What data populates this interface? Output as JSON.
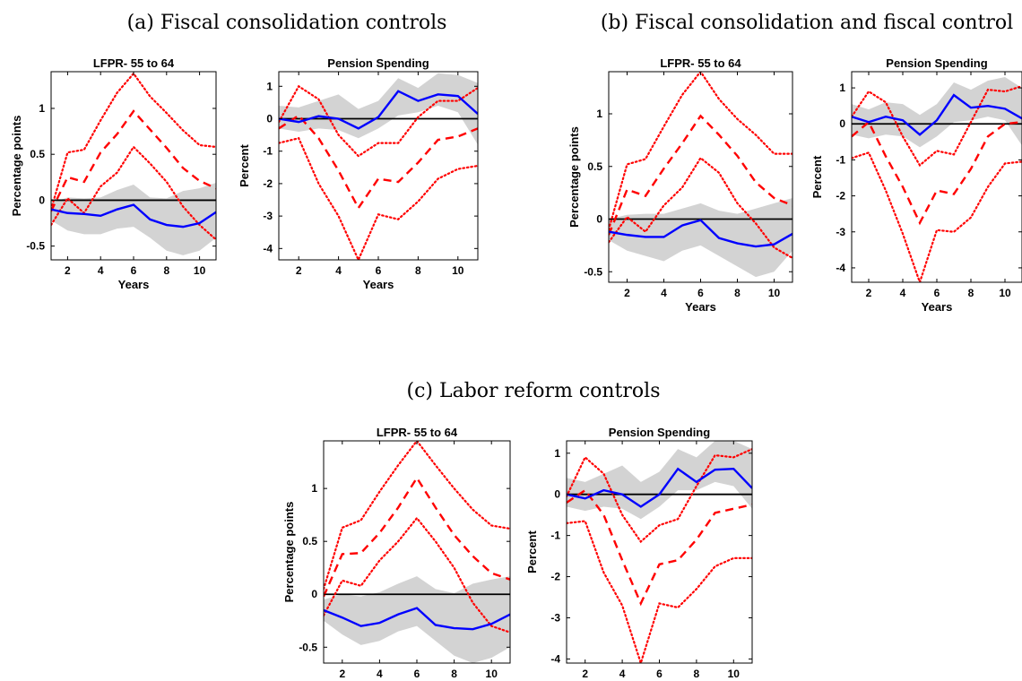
{
  "panels": [
    {
      "label": "(a) Fiscal consolidation controls"
    },
    {
      "label": "(b) Fiscal consolidation and fiscal control"
    },
    {
      "label": "(c) Labor reform controls"
    }
  ],
  "colors": {
    "band": "#d3d3d3",
    "line": "#0000ff",
    "red": "#ff0000",
    "zero": "#000000"
  },
  "chart_data": [
    {
      "panel": "a",
      "type": "line",
      "title": "LFPR- 55 to 64",
      "xlabel": "Years",
      "ylabel": "Percentage points",
      "xlim": [
        1,
        11
      ],
      "ylim": [
        -0.65,
        1.4
      ],
      "xticks": [
        2,
        4,
        6,
        8,
        10
      ],
      "yticks": [
        -0.5,
        0,
        0.5,
        1
      ],
      "x": [
        1,
        2,
        3,
        4,
        5,
        6,
        7,
        8,
        9,
        10,
        11
      ],
      "band_lower": [
        -0.22,
        -0.33,
        -0.37,
        -0.37,
        -0.31,
        -0.29,
        -0.41,
        -0.55,
        -0.6,
        -0.55,
        -0.41
      ],
      "band_upper": [
        -0.03,
        0.03,
        0.02,
        0.03,
        0.11,
        0.17,
        0.03,
        0.02,
        0.1,
        0.13,
        0.19
      ],
      "line": [
        -0.1,
        -0.14,
        -0.15,
        -0.17,
        -0.1,
        -0.05,
        -0.21,
        -0.27,
        -0.29,
        -0.25,
        -0.13
      ],
      "red_dashed": [
        -0.12,
        0.25,
        0.2,
        0.52,
        0.72,
        0.97,
        0.77,
        0.57,
        0.35,
        0.21,
        0.13
      ],
      "red_upper": [
        -0.1,
        0.52,
        0.55,
        0.87,
        1.17,
        1.38,
        1.13,
        0.95,
        0.76,
        0.6,
        0.58
      ],
      "red_lower": [
        -0.27,
        0.02,
        -0.14,
        0.15,
        0.3,
        0.58,
        0.4,
        0.2,
        -0.07,
        -0.27,
        -0.43
      ]
    },
    {
      "panel": "a",
      "type": "line",
      "title": "Pension Spending",
      "xlabel": "Years",
      "ylabel": "Percent",
      "xlim": [
        1,
        11
      ],
      "ylim": [
        -4.35,
        1.45
      ],
      "xticks": [
        2,
        4,
        6,
        8,
        10
      ],
      "yticks": [
        -4,
        -3,
        -2,
        -1,
        0,
        1
      ],
      "x": [
        1,
        2,
        3,
        4,
        5,
        6,
        7,
        8,
        9,
        10,
        11
      ],
      "band_lower": [
        -0.3,
        -0.4,
        -0.3,
        -0.35,
        -0.6,
        -0.3,
        0.1,
        0.2,
        0.4,
        0.2,
        -0.8
      ],
      "band_upper": [
        0.4,
        0.35,
        0.55,
        0.75,
        0.3,
        0.55,
        1.25,
        0.95,
        1.4,
        1.35,
        1.1
      ],
      "line": [
        0.0,
        -0.1,
        0.08,
        0.0,
        -0.3,
        0.05,
        0.85,
        0.55,
        0.75,
        0.7,
        0.15
      ],
      "red_dashed": [
        -0.3,
        0.1,
        -0.6,
        -1.6,
        -2.75,
        -1.85,
        -1.95,
        -1.35,
        -0.65,
        -0.55,
        -0.3
      ],
      "red_upper": [
        -0.1,
        1.0,
        0.6,
        -0.5,
        -1.15,
        -0.75,
        -0.75,
        0.05,
        0.55,
        0.55,
        0.95
      ],
      "red_lower": [
        -0.75,
        -0.6,
        -2.0,
        -3.0,
        -4.35,
        -2.95,
        -3.1,
        -2.55,
        -1.85,
        -1.55,
        -1.45
      ]
    },
    {
      "panel": "b",
      "type": "line",
      "title": "LFPR- 55 to 64",
      "xlabel": "Years",
      "ylabel": "Percentage points",
      "xlim": [
        1,
        11
      ],
      "ylim": [
        -0.6,
        1.4
      ],
      "xticks": [
        2,
        4,
        6,
        8,
        10
      ],
      "yticks": [
        -0.5,
        0,
        0.5,
        1
      ],
      "x": [
        1,
        2,
        3,
        4,
        5,
        6,
        7,
        8,
        9,
        10,
        11
      ],
      "band_lower": [
        -0.2,
        -0.3,
        -0.35,
        -0.4,
        -0.3,
        -0.25,
        -0.35,
        -0.45,
        -0.55,
        -0.5,
        -0.3
      ],
      "band_upper": [
        0.0,
        0.04,
        0.05,
        0.05,
        0.1,
        0.15,
        0.08,
        0.05,
        0.1,
        0.15,
        0.2
      ],
      "line": [
        -0.12,
        -0.15,
        -0.17,
        -0.17,
        -0.06,
        -0.01,
        -0.18,
        -0.23,
        -0.26,
        -0.24,
        -0.14
      ],
      "red_dashed": [
        -0.15,
        0.28,
        0.22,
        0.48,
        0.72,
        0.98,
        0.8,
        0.6,
        0.35,
        0.2,
        0.13
      ],
      "red_upper": [
        -0.1,
        0.52,
        0.57,
        0.88,
        1.18,
        1.4,
        1.14,
        0.95,
        0.8,
        0.62,
        0.62
      ],
      "red_lower": [
        -0.22,
        0.02,
        -0.12,
        0.13,
        0.3,
        0.58,
        0.44,
        0.15,
        -0.04,
        -0.27,
        -0.37
      ]
    },
    {
      "panel": "b",
      "type": "line",
      "title": "Pension Spending",
      "xlabel": "Years",
      "ylabel": "Percent",
      "xlim": [
        1,
        11
      ],
      "ylim": [
        -4.4,
        1.45
      ],
      "xticks": [
        2,
        4,
        6,
        8,
        10
      ],
      "yticks": [
        -4,
        -3,
        -2,
        -1,
        0,
        1
      ],
      "x": [
        1,
        2,
        3,
        4,
        5,
        6,
        7,
        8,
        9,
        10,
        11
      ],
      "band_lower": [
        -0.3,
        -0.4,
        -0.3,
        -0.35,
        -0.65,
        -0.35,
        0.05,
        0.1,
        0.2,
        0.1,
        -0.6
      ],
      "band_upper": [
        0.55,
        0.4,
        0.6,
        0.55,
        0.25,
        0.55,
        1.15,
        0.95,
        1.2,
        1.3,
        1.0
      ],
      "line": [
        0.2,
        0.05,
        0.2,
        0.1,
        -0.3,
        0.1,
        0.8,
        0.45,
        0.5,
        0.42,
        0.15
      ],
      "red_dashed": [
        -0.35,
        0.05,
        -0.9,
        -1.75,
        -2.75,
        -1.85,
        -1.95,
        -1.25,
        -0.35,
        0.0,
        0.05
      ],
      "red_upper": [
        0.2,
        0.9,
        0.6,
        -0.35,
        -1.15,
        -0.75,
        -0.85,
        0.05,
        0.95,
        0.9,
        1.05
      ],
      "red_lower": [
        -0.95,
        -0.8,
        -1.85,
        -3.05,
        -4.4,
        -2.95,
        -3.0,
        -2.6,
        -1.75,
        -1.1,
        -1.05
      ]
    },
    {
      "panel": "c",
      "type": "line",
      "title": "LFPR- 55 to 64",
      "xlabel": "Years",
      "ylabel": "Percentage points",
      "xlim": [
        1,
        11
      ],
      "ylim": [
        -0.65,
        1.45
      ],
      "xticks": [
        2,
        4,
        6,
        8,
        10
      ],
      "yticks": [
        -0.5,
        0,
        0.5,
        1
      ],
      "x": [
        1,
        2,
        3,
        4,
        5,
        6,
        7,
        8,
        9,
        10,
        11
      ],
      "band_lower": [
        -0.25,
        -0.38,
        -0.48,
        -0.44,
        -0.35,
        -0.3,
        -0.44,
        -0.58,
        -0.65,
        -0.6,
        -0.5
      ],
      "band_upper": [
        -0.05,
        0.0,
        -0.02,
        0.02,
        0.1,
        0.17,
        0.05,
        0.01,
        0.1,
        0.14,
        0.17
      ],
      "line": [
        -0.15,
        -0.22,
        -0.3,
        -0.27,
        -0.19,
        -0.13,
        -0.29,
        -0.32,
        -0.33,
        -0.28,
        -0.19
      ],
      "red_dashed": [
        -0.02,
        0.38,
        0.39,
        0.58,
        0.82,
        1.1,
        0.82,
        0.56,
        0.36,
        0.2,
        0.14
      ],
      "red_upper": [
        0.05,
        0.63,
        0.7,
        0.97,
        1.22,
        1.45,
        1.22,
        1.0,
        0.8,
        0.65,
        0.62
      ],
      "red_lower": [
        -0.2,
        0.13,
        0.08,
        0.32,
        0.5,
        0.72,
        0.5,
        0.25,
        -0.08,
        -0.3,
        -0.36
      ]
    },
    {
      "panel": "c",
      "type": "line",
      "title": "Pension Spending",
      "xlabel": "Years",
      "ylabel": "Percent",
      "xlim": [
        1,
        11
      ],
      "ylim": [
        -4.1,
        1.3
      ],
      "xticks": [
        2,
        4,
        6,
        8,
        10
      ],
      "yticks": [
        -4,
        -3,
        -2,
        -1,
        0,
        1
      ],
      "x": [
        1,
        2,
        3,
        4,
        5,
        6,
        7,
        8,
        9,
        10,
        11
      ],
      "band_lower": [
        -0.3,
        -0.4,
        -0.3,
        -0.35,
        -0.6,
        -0.3,
        0.1,
        0.1,
        0.3,
        0.2,
        -0.35
      ],
      "band_upper": [
        0.4,
        0.3,
        0.5,
        0.7,
        0.3,
        0.55,
        1.1,
        0.9,
        1.3,
        1.3,
        1.1
      ],
      "line": [
        0.0,
        -0.1,
        0.1,
        0.0,
        -0.3,
        0.0,
        0.62,
        0.3,
        0.6,
        0.62,
        0.15
      ],
      "red_dashed": [
        -0.2,
        0.1,
        -0.5,
        -1.6,
        -2.65,
        -1.7,
        -1.6,
        -1.1,
        -0.45,
        -0.35,
        -0.25
      ],
      "red_upper": [
        -0.05,
        0.9,
        0.5,
        -0.5,
        -1.15,
        -0.75,
        -0.6,
        0.2,
        0.95,
        0.9,
        1.1
      ],
      "red_lower": [
        -0.7,
        -0.65,
        -1.9,
        -2.7,
        -4.1,
        -2.65,
        -2.75,
        -2.3,
        -1.75,
        -1.55,
        -1.55
      ]
    }
  ]
}
